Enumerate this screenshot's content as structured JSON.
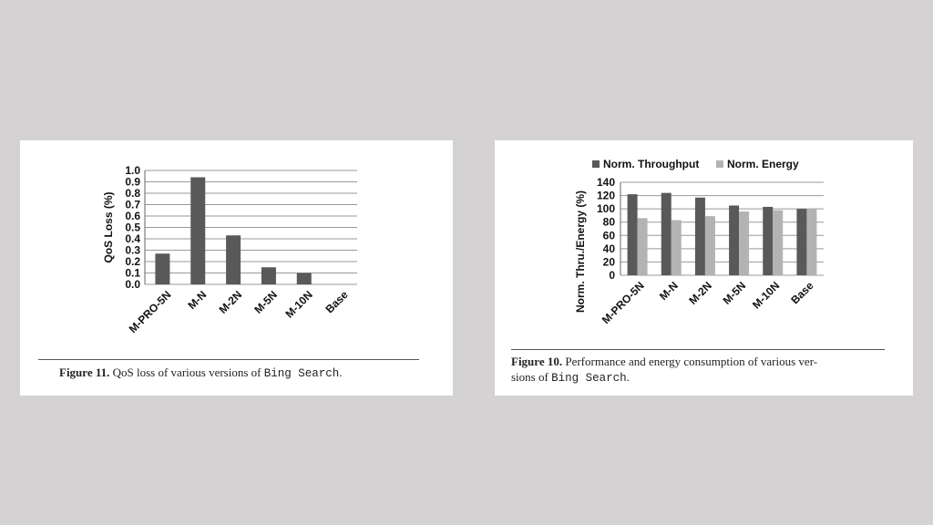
{
  "figure_left": {
    "caption": {
      "label": "Figure 11.",
      "text_before": "QoS loss of various versions of",
      "code": "Bing Search",
      "text_after": "."
    }
  },
  "figure_right": {
    "caption": {
      "label": "Figure 10.",
      "text_line1": "Performance and energy consumption of various ver-",
      "text_line2_before": "sions of",
      "code": "Bing Search",
      "text_after": "."
    }
  },
  "colors": {
    "dark_bar": "#595959",
    "light_bar": "#b3b3b3",
    "grid": "#999999"
  },
  "chart_data": [
    {
      "type": "bar",
      "title": "",
      "xlabel": "",
      "ylabel": "QoS Loss (%)",
      "categories": [
        "M-PRO-5N",
        "M-N",
        "M-2N",
        "M-5N",
        "M-10N",
        "Base"
      ],
      "values": [
        0.27,
        0.94,
        0.43,
        0.15,
        0.1,
        0
      ],
      "ylim": [
        0,
        1.0
      ],
      "yticks": [
        "0.0",
        "0.1",
        "0.2",
        "0.3",
        "0.4",
        "0.5",
        "0.6",
        "0.7",
        "0.8",
        "0.9",
        "1.0"
      ],
      "grid": true
    },
    {
      "type": "bar",
      "title": "",
      "xlabel": "",
      "ylabel": "Norm. Thru./Energy (%)",
      "categories": [
        "M-PRO-5N",
        "M-N",
        "M-2N",
        "M-5N",
        "M-10N",
        "Base"
      ],
      "series": [
        {
          "name": "Norm. Throughput",
          "values": [
            122,
            124,
            117,
            105,
            103,
            100
          ]
        },
        {
          "name": "Norm. Energy",
          "values": [
            86,
            83,
            89,
            96,
            98,
            100
          ]
        }
      ],
      "ylim": [
        0,
        140
      ],
      "yticks": [
        "0",
        "20",
        "40",
        "60",
        "80",
        "100",
        "120",
        "140"
      ],
      "legend": "top",
      "grid": true
    }
  ]
}
